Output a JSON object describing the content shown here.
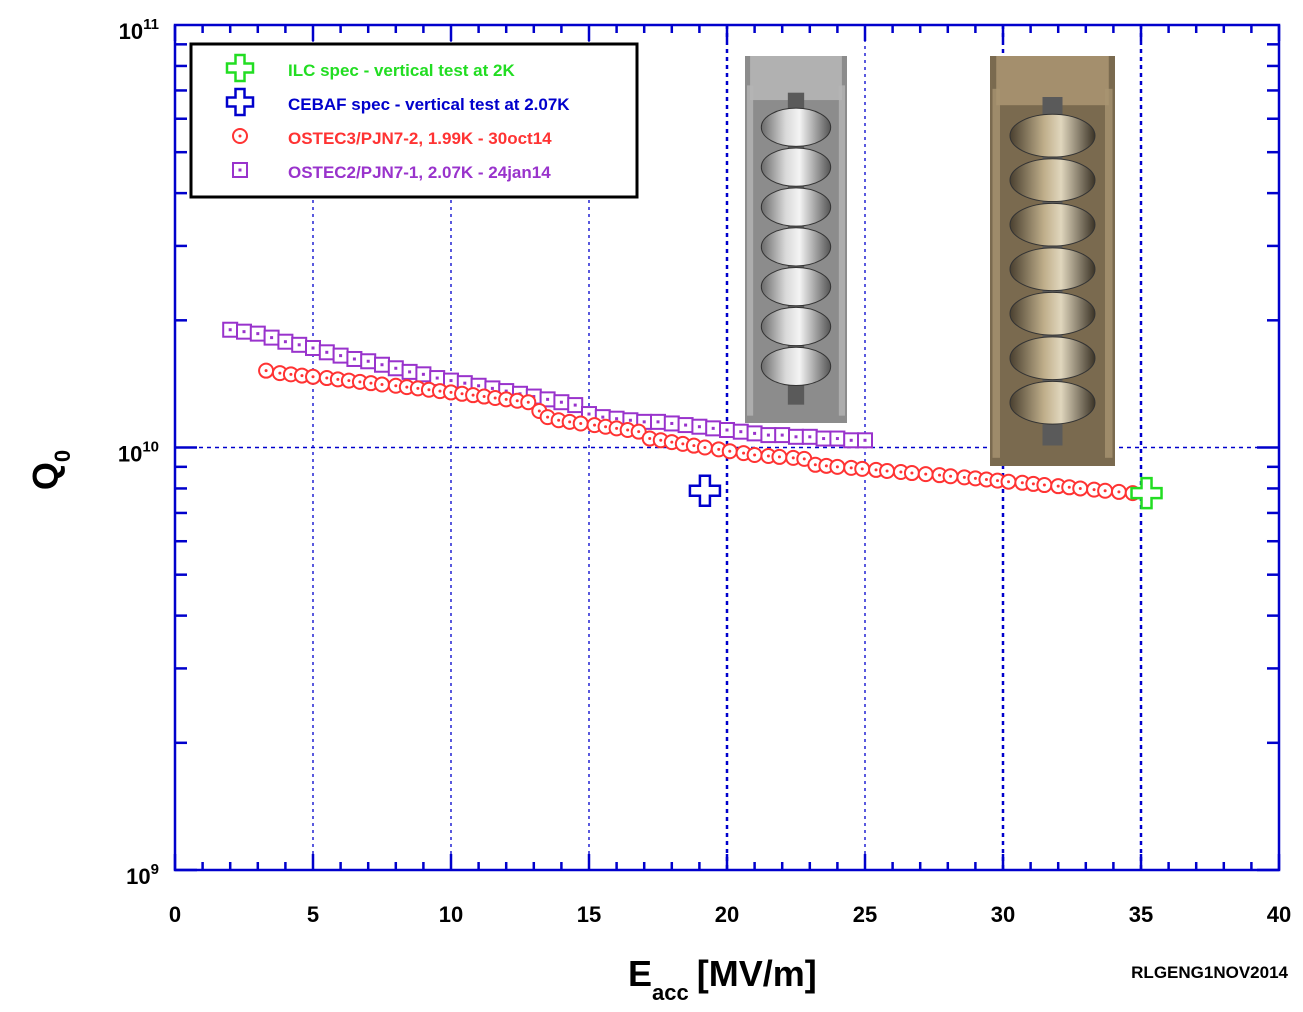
{
  "chart_data": {
    "type": "scatter",
    "x_scale": "linear",
    "y_scale": "log",
    "xlim": [
      0,
      40
    ],
    "ylim": [
      1000000000.0,
      100000000000.0
    ],
    "x_ticks": [
      "0",
      "5",
      "10",
      "15",
      "20",
      "25",
      "30",
      "35",
      "40"
    ],
    "y_ticks": [
      {
        "base": "10",
        "exp": "9"
      },
      {
        "base": "10",
        "exp": "10"
      },
      {
        "base": "10",
        "exp": "11"
      }
    ],
    "xlabel": {
      "main": "E",
      "sub": "acc",
      "unit": "[MV/m]"
    },
    "ylabel": {
      "main": "Q",
      "sub": "0"
    },
    "grid": true,
    "legend_position": "top-left",
    "footer": "RLGENG1NOV2014",
    "series": [
      {
        "name": "ILC spec - vertical test at 2K",
        "marker": "cross",
        "color": "#22dd22",
        "x": [
          35.2
        ],
        "y": [
          7800000000.0
        ]
      },
      {
        "name": "CEBAF spec - vertical test at 2.07K",
        "marker": "cross",
        "color": "#0000cc",
        "x": [
          19.2
        ],
        "y": [
          7900000000.0
        ]
      },
      {
        "name": "OSTEC3/PJN7-2, 1.99K - 30oct14",
        "marker": "circle",
        "color": "#ff3333",
        "x": [
          3.3,
          3.8,
          4.2,
          4.6,
          5.0,
          5.5,
          5.9,
          6.3,
          6.7,
          7.1,
          7.5,
          8.0,
          8.4,
          8.8,
          9.2,
          9.6,
          10.0,
          10.4,
          10.8,
          11.2,
          11.6,
          12.0,
          12.4,
          12.8,
          13.2,
          13.5,
          13.9,
          14.3,
          14.7,
          15.2,
          15.6,
          16.0,
          16.4,
          16.8,
          17.2,
          17.6,
          18.0,
          18.4,
          18.8,
          19.2,
          19.7,
          20.1,
          20.6,
          21.0,
          21.5,
          21.9,
          22.4,
          22.8,
          23.2,
          23.6,
          24.0,
          24.5,
          24.9,
          25.4,
          25.8,
          26.3,
          26.7,
          27.2,
          27.7,
          28.1,
          28.6,
          29.0,
          29.4,
          29.8,
          30.2,
          30.7,
          31.1,
          31.5,
          32.0,
          32.4,
          32.8,
          33.3,
          33.7,
          34.2,
          34.7
        ],
        "y": [
          15200000000.0,
          15000000000.0,
          14900000000.0,
          14800000000.0,
          14700000000.0,
          14600000000.0,
          14500000000.0,
          14400000000.0,
          14300000000.0,
          14200000000.0,
          14100000000.0,
          14000000000.0,
          13900000000.0,
          13800000000.0,
          13700000000.0,
          13600000000.0,
          13500000000.0,
          13400000000.0,
          13300000000.0,
          13200000000.0,
          13100000000.0,
          13000000000.0,
          12900000000.0,
          12800000000.0,
          12200000000.0,
          11800000000.0,
          11600000000.0,
          11500000000.0,
          11400000000.0,
          11300000000.0,
          11200000000.0,
          11100000000.0,
          11000000000.0,
          10900000000.0,
          10500000000.0,
          10400000000.0,
          10300000000.0,
          10200000000.0,
          10100000000.0,
          10000000000.0,
          9900000000.0,
          9800000000.0,
          9700000000.0,
          9600000000.0,
          9550000000.0,
          9500000000.0,
          9450000000.0,
          9400000000.0,
          9100000000.0,
          9050000000.0,
          9000000000.0,
          8950000000.0,
          8900000000.0,
          8850000000.0,
          8800000000.0,
          8750000000.0,
          8700000000.0,
          8650000000.0,
          8600000000.0,
          8550000000.0,
          8500000000.0,
          8450000000.0,
          8400000000.0,
          8350000000.0,
          8300000000.0,
          8250000000.0,
          8200000000.0,
          8150000000.0,
          8100000000.0,
          8050000000.0,
          8000000000.0,
          7950000000.0,
          7900000000.0,
          7850000000.0,
          7800000000.0
        ]
      },
      {
        "name": "OSTEC2/PJN7-1, 2.07K - 24jan14",
        "marker": "square",
        "color": "#9933cc",
        "x": [
          2.0,
          2.5,
          3.0,
          3.5,
          4.0,
          4.5,
          5.0,
          5.5,
          6.0,
          6.5,
          7.0,
          7.5,
          8.0,
          8.5,
          9.0,
          9.5,
          10.0,
          10.5,
          11.0,
          11.5,
          12.0,
          12.5,
          13.0,
          13.5,
          14.0,
          14.5,
          15.0,
          15.5,
          16.0,
          16.5,
          17.0,
          17.5,
          18.0,
          18.5,
          19.0,
          19.5,
          20.0,
          20.5,
          21.0,
          21.5,
          22.0,
          22.5,
          23.0,
          23.5,
          24.0,
          24.5,
          25.0
        ],
        "y": [
          19000000000.0,
          18800000000.0,
          18600000000.0,
          18200000000.0,
          17800000000.0,
          17500000000.0,
          17200000000.0,
          16800000000.0,
          16500000000.0,
          16200000000.0,
          16000000000.0,
          15700000000.0,
          15400000000.0,
          15100000000.0,
          14900000000.0,
          14600000000.0,
          14400000000.0,
          14200000000.0,
          14000000000.0,
          13800000000.0,
          13600000000.0,
          13400000000.0,
          13200000000.0,
          13000000000.0,
          12800000000.0,
          12600000000.0,
          12000000000.0,
          11800000000.0,
          11700000000.0,
          11600000000.0,
          11500000000.0,
          11500000000.0,
          11400000000.0,
          11300000000.0,
          11200000000.0,
          11100000000.0,
          11000000000.0,
          10900000000.0,
          10800000000.0,
          10700000000.0,
          10700000000.0,
          10600000000.0,
          10600000000.0,
          10500000000.0,
          10500000000.0,
          10400000000.0,
          10400000000.0
        ]
      }
    ]
  }
}
